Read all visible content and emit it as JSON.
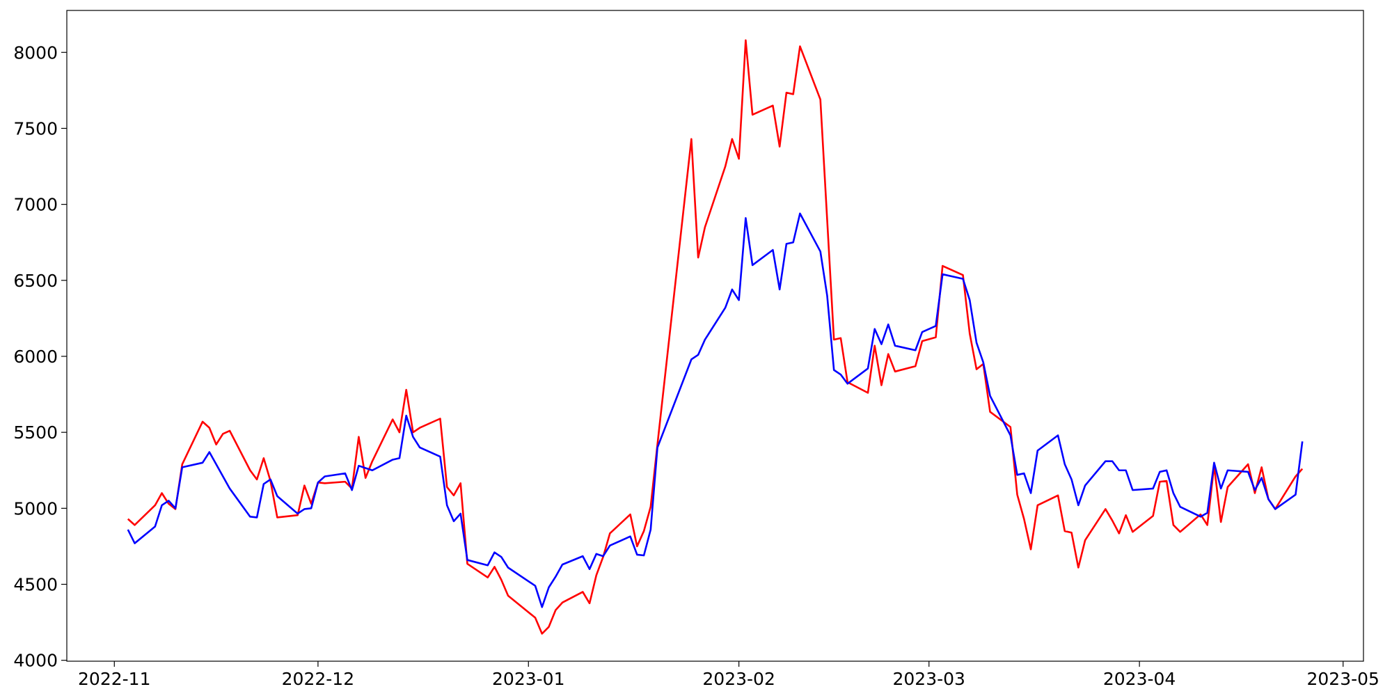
{
  "chart_data": {
    "type": "line",
    "x": [
      "2022-11-03",
      "2022-11-04",
      "2022-11-07",
      "2022-11-08",
      "2022-11-09",
      "2022-11-10",
      "2022-11-11",
      "2022-11-14",
      "2022-11-15",
      "2022-11-16",
      "2022-11-17",
      "2022-11-18",
      "2022-11-21",
      "2022-11-22",
      "2022-11-23",
      "2022-11-24",
      "2022-11-25",
      "2022-11-28",
      "2022-11-29",
      "2022-11-30",
      "2022-12-01",
      "2022-12-02",
      "2022-12-05",
      "2022-12-06",
      "2022-12-07",
      "2022-12-08",
      "2022-12-09",
      "2022-12-12",
      "2022-12-13",
      "2022-12-14",
      "2022-12-15",
      "2022-12-16",
      "2022-12-19",
      "2022-12-20",
      "2022-12-21",
      "2022-12-22",
      "2022-12-23",
      "2022-12-26",
      "2022-12-27",
      "2022-12-28",
      "2022-12-29",
      "2023-01-02",
      "2023-01-03",
      "2023-01-04",
      "2023-01-05",
      "2023-01-06",
      "2023-01-09",
      "2023-01-10",
      "2023-01-11",
      "2023-01-12",
      "2023-01-13",
      "2023-01-16",
      "2023-01-17",
      "2023-01-18",
      "2023-01-19",
      "2023-01-20",
      "2023-01-25",
      "2023-01-26",
      "2023-01-27",
      "2023-01-30",
      "2023-01-31",
      "2023-02-01",
      "2023-02-02",
      "2023-02-03",
      "2023-02-06",
      "2023-02-07",
      "2023-02-08",
      "2023-02-09",
      "2023-02-10",
      "2023-02-13",
      "2023-02-14",
      "2023-02-15",
      "2023-02-16",
      "2023-02-17",
      "2023-02-20",
      "2023-02-21",
      "2023-02-22",
      "2023-02-23",
      "2023-02-24",
      "2023-02-27",
      "2023-02-28",
      "2023-03-02",
      "2023-03-03",
      "2023-03-06",
      "2023-03-07",
      "2023-03-08",
      "2023-03-09",
      "2023-03-10",
      "2023-03-13",
      "2023-03-14",
      "2023-03-15",
      "2023-03-16",
      "2023-03-17",
      "2023-03-20",
      "2023-03-21",
      "2023-03-22",
      "2023-03-23",
      "2023-03-24",
      "2023-03-27",
      "2023-03-28",
      "2023-03-29",
      "2023-03-30",
      "2023-03-31",
      "2023-04-03",
      "2023-04-04",
      "2023-04-05",
      "2023-04-06",
      "2023-04-07",
      "2023-04-10",
      "2023-04-11",
      "2023-04-12",
      "2023-04-13",
      "2023-04-14",
      "2023-04-17",
      "2023-04-18",
      "2023-04-19",
      "2023-04-20",
      "2023-04-21",
      "2023-04-24",
      "2023-04-25"
    ],
    "series": [
      {
        "color": "#ff0000",
        "values": [
          4930,
          4890,
          5020,
          5100,
          5030,
          4995,
          5290,
          5570,
          5530,
          5420,
          5490,
          5510,
          5250,
          5190,
          5330,
          5180,
          4940,
          4955,
          5150,
          5030,
          5170,
          5165,
          5175,
          5130,
          5470,
          5200,
          5310,
          5585,
          5500,
          5780,
          5500,
          5530,
          5590,
          5140,
          5085,
          5165,
          4635,
          4545,
          4615,
          4530,
          4425,
          4280,
          4175,
          4220,
          4330,
          4380,
          4450,
          4375,
          4560,
          4680,
          4835,
          4960,
          4750,
          4850,
          5010,
          5420,
          7430,
          6650,
          6850,
          7250,
          7430,
          7300,
          8080,
          7590,
          7650,
          7380,
          7735,
          7725,
          8040,
          7690,
          6900,
          6110,
          6120,
          5830,
          5760,
          6070,
          5810,
          6015,
          5900,
          5935,
          6100,
          6125,
          6595,
          6535,
          6150,
          5915,
          5950,
          5635,
          5535,
          5090,
          4930,
          4730,
          5020,
          5085,
          4850,
          4840,
          4610,
          4790,
          4995,
          4920,
          4835,
          4955,
          4845,
          4950,
          5175,
          5180,
          4890,
          4845,
          4960,
          4890,
          5280,
          4910,
          5140,
          5290,
          5100,
          5270,
          5060,
          4995,
          5210,
          5260
        ]
      },
      {
        "color": "#0000ff",
        "values": [
          4860,
          4770,
          4880,
          5020,
          5050,
          5000,
          5270,
          5300,
          5370,
          5290,
          5210,
          5130,
          4945,
          4940,
          5160,
          5190,
          5080,
          4965,
          4995,
          5000,
          5170,
          5210,
          5230,
          5120,
          5280,
          5265,
          5250,
          5320,
          5330,
          5610,
          5470,
          5400,
          5340,
          5020,
          4915,
          4965,
          4660,
          4625,
          4710,
          4680,
          4610,
          4490,
          4350,
          4480,
          4550,
          4630,
          4685,
          4600,
          4700,
          4685,
          4755,
          4815,
          4695,
          4690,
          4860,
          5400,
          5980,
          6010,
          6110,
          6320,
          6440,
          6370,
          6910,
          6600,
          6700,
          6440,
          6740,
          6750,
          6940,
          6690,
          6400,
          5910,
          5880,
          5820,
          5920,
          6180,
          6080,
          6210,
          6070,
          6040,
          6160,
          6200,
          6540,
          6510,
          6370,
          6090,
          5960,
          5740,
          5480,
          5220,
          5230,
          5100,
          5380,
          5480,
          5290,
          5190,
          5020,
          5150,
          5310,
          5310,
          5250,
          5250,
          5120,
          5130,
          5240,
          5250,
          5100,
          5010,
          4945,
          4970,
          5300,
          5130,
          5250,
          5240,
          5120,
          5200,
          5060,
          4995,
          5090,
          5440
        ]
      }
    ],
    "xlim": [
      "2022-10-25",
      "2023-05-04"
    ],
    "xticks": [
      {
        "value": "2022-11-01",
        "label": "2022-11"
      },
      {
        "value": "2022-12-01",
        "label": "2022-12"
      },
      {
        "value": "2023-01-01",
        "label": "2023-01"
      },
      {
        "value": "2023-02-01",
        "label": "2023-02"
      },
      {
        "value": "2023-03-01",
        "label": "2023-03"
      },
      {
        "value": "2023-04-01",
        "label": "2023-04"
      },
      {
        "value": "2023-05-01",
        "label": "2023-05"
      }
    ],
    "ylim": [
      3994,
      8276
    ],
    "yticks": [
      4000,
      4500,
      5000,
      5500,
      6000,
      6500,
      7000,
      7500,
      8000
    ],
    "grid": false
  }
}
